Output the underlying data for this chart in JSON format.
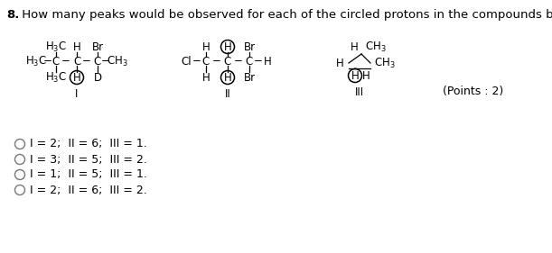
{
  "title_bold": "8.",
  "title_text": " How many peaks would be observed for each of the circled protons in the compounds below?",
  "background_color": "#ffffff",
  "options": [
    "I = 2;  II = 6;  III = 1.",
    "I = 3;  II = 5;  III = 2.",
    "I = 1;  II = 5;  III = 1.",
    "I = 2;  II = 6;  III = 2."
  ],
  "points_text": "(Points : 2)",
  "figsize": [
    6.11,
    2.81
  ],
  "dpi": 100
}
